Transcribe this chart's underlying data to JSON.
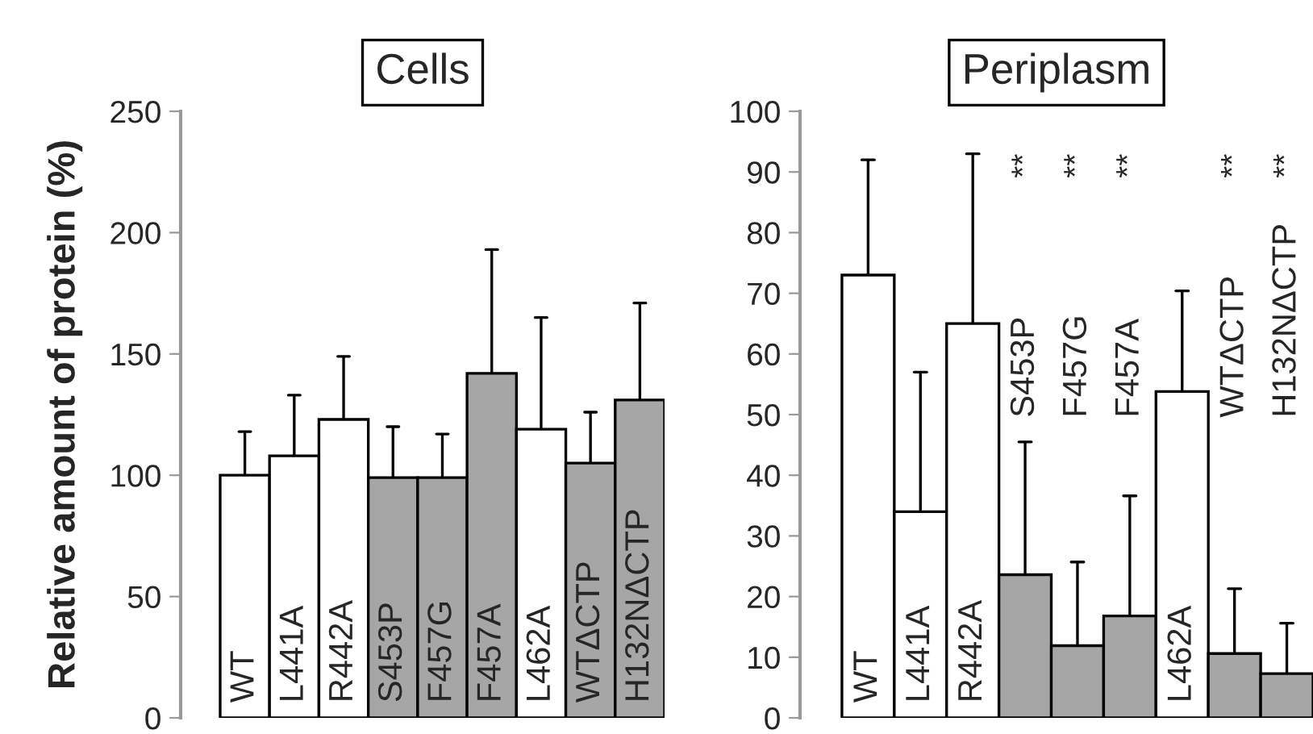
{
  "chart_data": [
    {
      "type": "bar",
      "title": "Cells",
      "ylabel": "Relative amount of protein (%)",
      "categories": [
        "WT",
        "L441A",
        "R442A",
        "S453P",
        "F457G",
        "F457A",
        "L462A",
        "WTΔCTP",
        "H132NΔCTP"
      ],
      "values": [
        100,
        108,
        123,
        99,
        99,
        142,
        119,
        105,
        131
      ],
      "colors": [
        "#ffffff",
        "#ffffff",
        "#ffffff",
        "#a6a6a6",
        "#a6a6a6",
        "#a6a6a6",
        "#ffffff",
        "#a6a6a6",
        "#a6a6a6"
      ],
      "errors": [
        [
          100,
          118
        ],
        [
          108,
          133
        ],
        [
          123,
          149
        ],
        [
          99,
          120
        ],
        [
          99,
          117
        ],
        [
          142,
          193
        ],
        [
          119,
          165
        ],
        [
          105,
          126
        ],
        [
          131,
          171
        ]
      ],
      "ylim": [
        0,
        250
      ],
      "yticks": [
        0,
        50,
        100,
        150,
        200,
        250
      ],
      "tick_labels": "y",
      "grid": false
    },
    {
      "type": "bar",
      "title": "Periplasm",
      "categories": [
        "WT",
        "L441A",
        "R442A",
        "S453P",
        "F457G",
        "F457A",
        "L462A",
        "WTΔCTP",
        "H132NΔCTP"
      ],
      "values": [
        73,
        34,
        65,
        23.6,
        11.9,
        16.8,
        53.8,
        10.6,
        7.3
      ],
      "colors": [
        "#ffffff",
        "#ffffff",
        "#ffffff",
        "#a6a6a6",
        "#a6a6a6",
        "#a6a6a6",
        "#ffffff",
        "#a6a6a6",
        "#a6a6a6"
      ],
      "errors": [
        [
          73,
          92
        ],
        [
          34,
          57
        ],
        [
          65,
          93
        ],
        [
          23.6,
          45.5
        ],
        [
          11.9,
          25.7
        ],
        [
          16.8,
          36.6
        ],
        [
          53.8,
          70.4
        ],
        [
          10.6,
          21.3
        ],
        [
          7.3,
          15.6
        ]
      ],
      "ylim": [
        0,
        100
      ],
      "yticks": [
        0,
        10,
        20,
        30,
        40,
        50,
        60,
        70,
        80,
        90,
        100
      ],
      "tick_labels": "y",
      "grid": false,
      "annotations": [
        "**",
        "**",
        "**",
        "**",
        "**"
      ]
    }
  ]
}
